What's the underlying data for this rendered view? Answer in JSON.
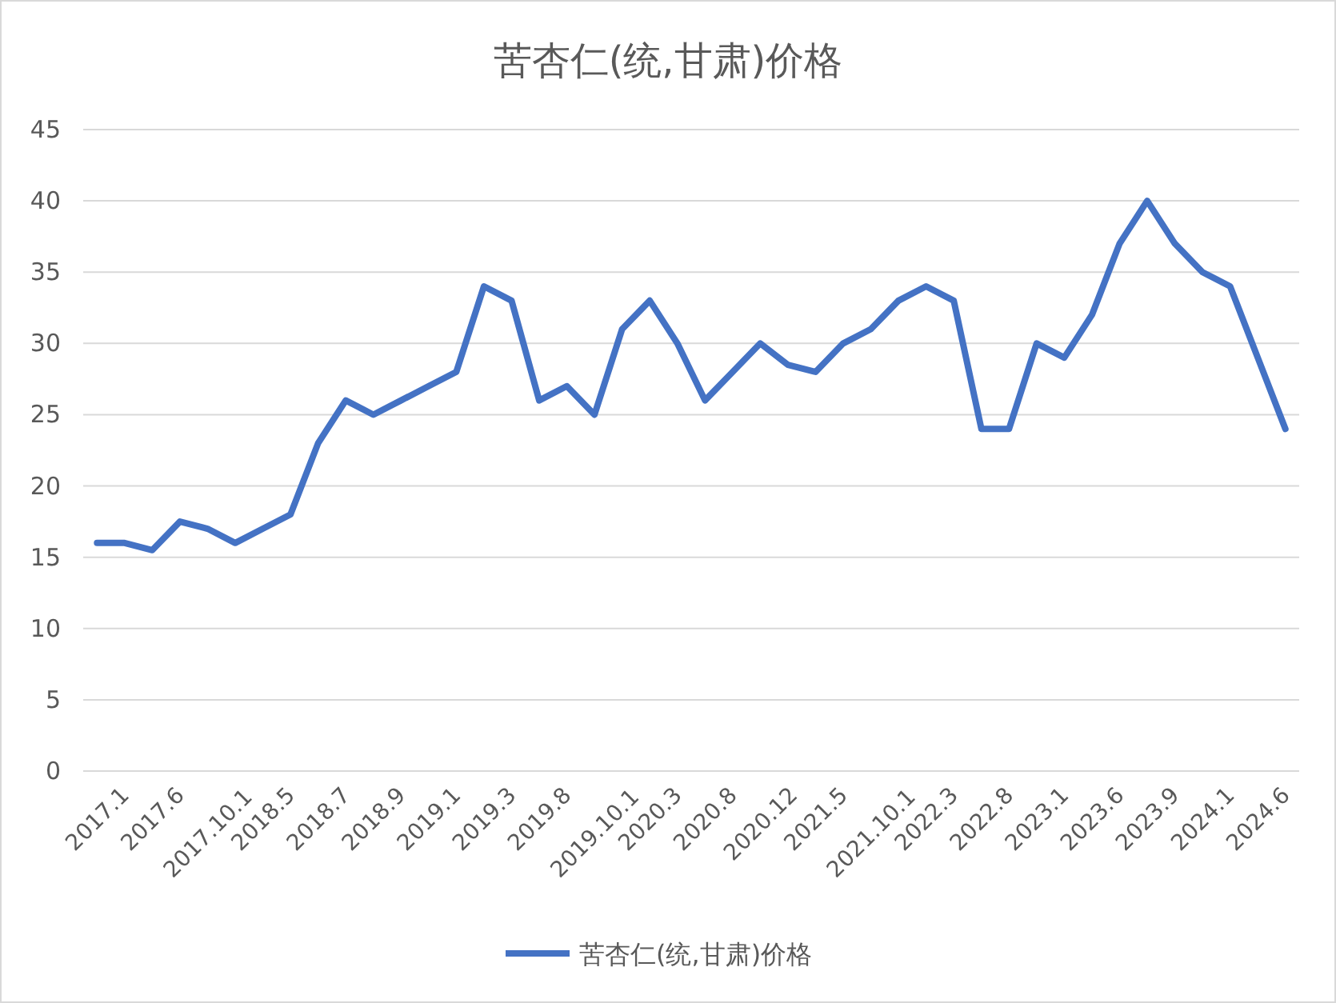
{
  "chart_data": {
    "type": "line",
    "title": "苦杏仁(统,甘肃)价格",
    "categories": [
      "2017.1",
      null,
      "2017.6",
      null,
      "2017.10.1",
      null,
      "2018.5",
      null,
      "2018.7",
      null,
      "2018.9",
      null,
      "2019.1",
      null,
      "2019.3",
      null,
      "2019.8",
      null,
      "2019.10.1",
      null,
      "2020.3",
      null,
      "2020.8",
      null,
      "2020.12",
      null,
      "2021.5",
      null,
      "2021.10.1",
      null,
      "2022.3",
      null,
      "2022.8",
      null,
      "2023.1",
      null,
      "2023.6",
      null,
      "2023.9",
      null,
      "2024.1",
      null,
      "2024.6",
      null
    ],
    "series": [
      {
        "name": "苦杏仁(统,甘肃)价格",
        "color": "#4472c4",
        "values": [
          16,
          16,
          15.5,
          17.5,
          17,
          16,
          17,
          18,
          23,
          26,
          25,
          26,
          27,
          28,
          34,
          33,
          26,
          27,
          25,
          31,
          33,
          30,
          26,
          28,
          30,
          28.5,
          28,
          30,
          31,
          33,
          34,
          33,
          24,
          24,
          30,
          29,
          32,
          37,
          40,
          37,
          35,
          34,
          29,
          24
        ]
      }
    ],
    "ylim": [
      0,
      45
    ],
    "yticks": [
      0,
      5,
      10,
      15,
      20,
      25,
      30,
      35,
      40,
      45
    ],
    "grid": "y",
    "legend": "bottom",
    "marker": "none",
    "line_style": "solid"
  }
}
